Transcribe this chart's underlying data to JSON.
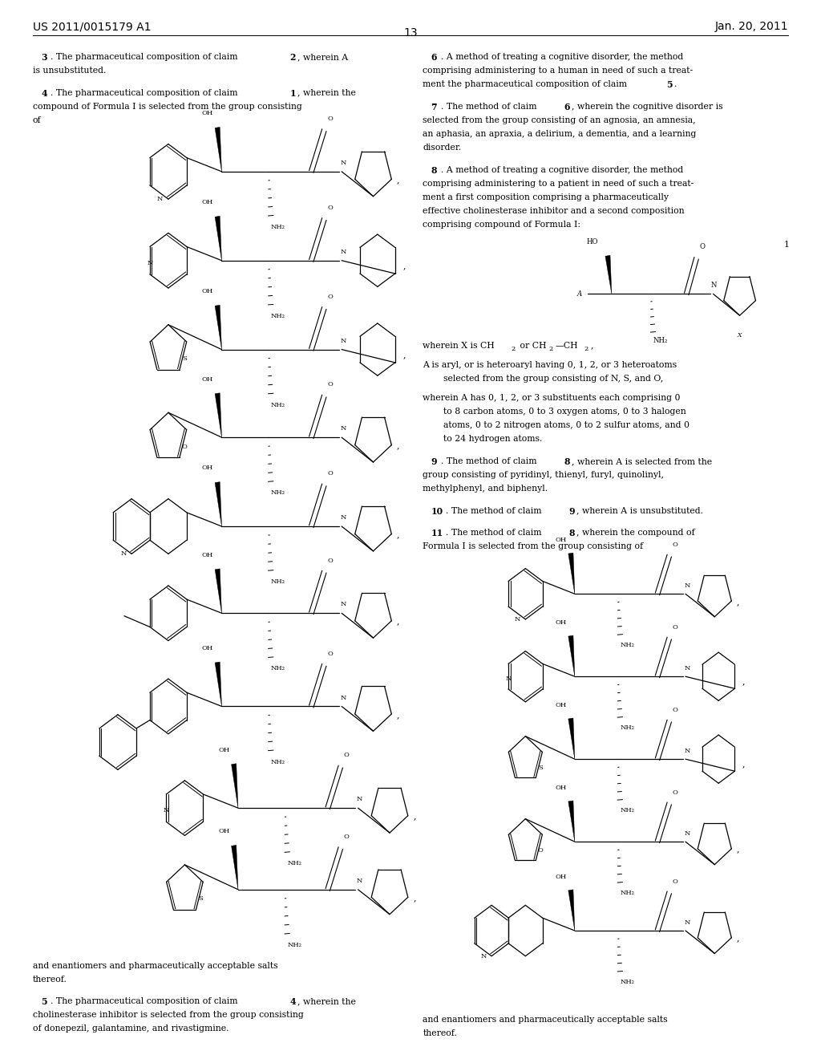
{
  "bg": "#ffffff",
  "text_color": "#000000",
  "header_left": "US 2011/0015179 A1",
  "header_right": "Jan. 20, 2011",
  "page_num": "13"
}
